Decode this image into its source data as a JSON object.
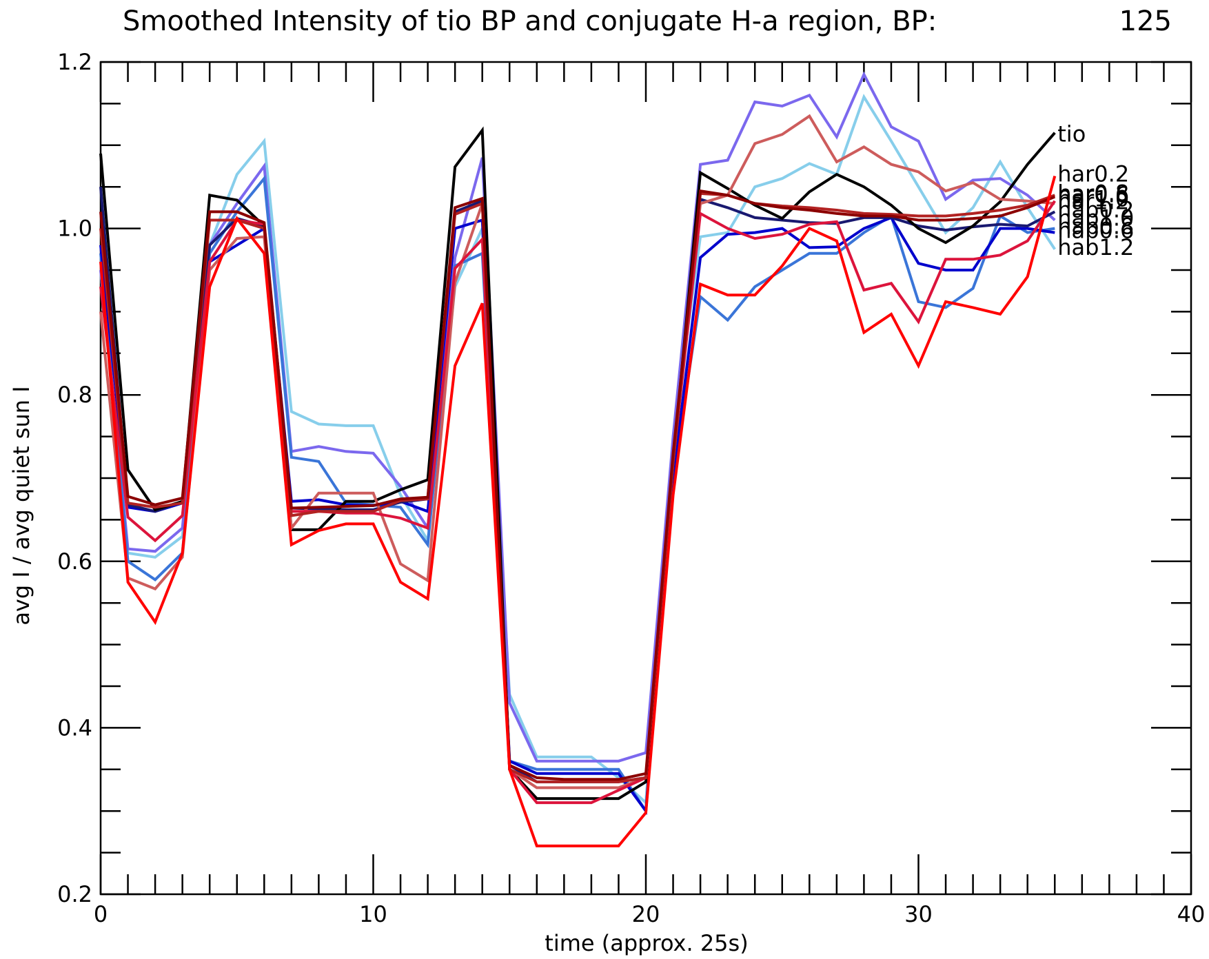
{
  "chart_data": {
    "type": "line",
    "title": "Smoothed Intensity of tio BP and conjugate H-a region, BP:",
    "title_value": "125",
    "xlabel": "time (approx. 25s)",
    "ylabel": "avg I / avg quiet sun I",
    "xlim": [
      0,
      40
    ],
    "ylim": [
      0.2,
      1.2
    ],
    "x_ticks": [
      0,
      10,
      20,
      30,
      40
    ],
    "y_ticks": [
      0.2,
      0.4,
      0.6,
      0.8,
      1.0,
      1.2
    ],
    "x_tick_labels": [
      "0",
      "10",
      "20",
      "30",
      "40"
    ],
    "y_tick_labels": [
      "0.2",
      "0.4",
      "0.6",
      "0.8",
      "1.0",
      "1.2"
    ],
    "grid": false,
    "x": [
      0,
      1,
      2,
      3,
      4,
      5,
      6,
      7,
      8,
      9,
      10,
      11,
      12,
      13,
      14,
      15,
      16,
      17,
      18,
      19,
      20,
      21,
      22,
      23,
      24,
      25,
      26,
      27,
      28,
      29,
      30,
      31,
      32,
      33,
      34,
      35
    ],
    "series": [
      {
        "key": "hab1.2",
        "color": "#87ceeb",
        "values": [
          0.95,
          0.61,
          0.605,
          0.63,
          0.98,
          1.065,
          1.105,
          0.78,
          0.765,
          0.763,
          0.763,
          0.68,
          0.625,
          0.93,
          1.0,
          0.44,
          0.365,
          0.365,
          0.365,
          0.34,
          0.31,
          0.75,
          0.99,
          0.995,
          1.05,
          1.06,
          1.078,
          1.065,
          1.158,
          1.105,
          1.05,
          0.995,
          1.025,
          1.08,
          1.025,
          0.975
        ]
      },
      {
        "key": "hab1.0",
        "color": "#7b68ee",
        "values": [
          0.95,
          0.615,
          0.612,
          0.64,
          0.98,
          1.03,
          1.075,
          0.732,
          0.738,
          0.732,
          0.73,
          0.69,
          0.64,
          0.965,
          1.085,
          0.43,
          0.36,
          0.36,
          0.36,
          0.36,
          0.37,
          0.75,
          1.077,
          1.082,
          1.152,
          1.147,
          1.16,
          1.11,
          1.185,
          1.122,
          1.105,
          1.035,
          1.058,
          1.06,
          1.04,
          1.01
        ]
      },
      {
        "key": "hab0.8",
        "color": "#3a75d8",
        "values": [
          0.97,
          0.6,
          0.578,
          0.61,
          0.97,
          1.02,
          1.06,
          0.725,
          0.72,
          0.67,
          0.668,
          0.665,
          0.62,
          0.955,
          0.97,
          0.36,
          0.35,
          0.35,
          0.35,
          0.35,
          0.3,
          0.7,
          0.918,
          0.89,
          0.93,
          0.95,
          0.97,
          0.97,
          0.995,
          1.015,
          0.912,
          0.905,
          0.928,
          1.015,
          0.995,
          1.0
        ]
      },
      {
        "key": "hab0.6",
        "color": "#0000cc",
        "values": [
          0.98,
          0.665,
          0.66,
          0.67,
          0.96,
          0.98,
          1.0,
          0.672,
          0.674,
          0.668,
          0.667,
          0.672,
          0.66,
          1.0,
          1.01,
          0.36,
          0.345,
          0.345,
          0.345,
          0.345,
          0.3,
          0.7,
          0.965,
          0.993,
          0.995,
          1.0,
          0.977,
          0.978,
          1.0,
          1.013,
          0.958,
          0.95,
          0.95,
          1.0,
          1.0,
          0.995
        ]
      },
      {
        "key": "hab0.2",
        "color": "#191970",
        "values": [
          1.05,
          0.668,
          0.66,
          0.672,
          0.98,
          1.012,
          1.003,
          0.664,
          0.663,
          0.662,
          0.662,
          0.671,
          0.675,
          1.02,
          1.033,
          0.355,
          0.335,
          0.335,
          0.335,
          0.335,
          0.34,
          0.72,
          1.035,
          1.025,
          1.013,
          1.01,
          1.007,
          1.006,
          1.013,
          1.013,
          1.003,
          0.998,
          1.002,
          1.005,
          1.003,
          1.02
        ]
      },
      {
        "key": "tio",
        "color": "#000000",
        "values": [
          1.09,
          0.71,
          0.662,
          0.672,
          1.04,
          1.034,
          1.003,
          0.638,
          0.638,
          0.672,
          0.672,
          0.686,
          0.698,
          1.074,
          1.118,
          0.35,
          0.315,
          0.315,
          0.315,
          0.315,
          0.335,
          0.72,
          1.067,
          1.048,
          1.028,
          1.012,
          1.044,
          1.065,
          1.05,
          1.028,
          1.0,
          0.983,
          1.003,
          1.032,
          1.077,
          1.115
        ]
      },
      {
        "key": "har1.2",
        "color": "#cd5c5c",
        "values": [
          0.9,
          0.58,
          0.567,
          0.605,
          0.95,
          0.988,
          0.99,
          0.64,
          0.682,
          0.682,
          0.682,
          0.597,
          0.577,
          0.935,
          1.03,
          0.35,
          0.328,
          0.328,
          0.328,
          0.328,
          0.34,
          0.72,
          1.03,
          1.04,
          1.102,
          1.113,
          1.135,
          1.08,
          1.098,
          1.077,
          1.068,
          1.045,
          1.055,
          1.035,
          1.033,
          1.03
        ]
      },
      {
        "key": "har1.0",
        "color": "#dc143c",
        "values": [
          0.93,
          0.653,
          0.625,
          0.655,
          0.96,
          1.01,
          1.005,
          0.66,
          0.66,
          0.658,
          0.658,
          0.652,
          0.64,
          0.952,
          0.987,
          0.35,
          0.31,
          0.31,
          0.31,
          0.325,
          0.34,
          0.72,
          1.018,
          1.0,
          0.988,
          0.993,
          1.005,
          1.008,
          0.926,
          0.934,
          0.888,
          0.963,
          0.963,
          0.968,
          0.985,
          1.033
        ]
      },
      {
        "key": "har0.8",
        "color": "#b22222",
        "values": [
          1.0,
          0.67,
          0.665,
          0.67,
          1.01,
          1.01,
          1.0,
          0.655,
          0.66,
          0.66,
          0.66,
          0.673,
          0.675,
          1.017,
          1.03,
          0.35,
          0.335,
          0.335,
          0.335,
          0.335,
          0.34,
          0.72,
          1.042,
          1.04,
          1.03,
          1.027,
          1.025,
          1.022,
          1.018,
          1.017,
          1.015,
          1.015,
          1.018,
          1.022,
          1.028,
          1.04
        ]
      },
      {
        "key": "har0.6",
        "color": "#8b0000",
        "values": [
          1.02,
          0.678,
          0.668,
          0.676,
          1.02,
          1.02,
          1.007,
          0.664,
          0.665,
          0.666,
          0.667,
          0.675,
          0.677,
          1.025,
          1.036,
          0.355,
          0.34,
          0.338,
          0.338,
          0.338,
          0.345,
          0.73,
          1.045,
          1.04,
          1.03,
          1.025,
          1.022,
          1.018,
          1.015,
          1.015,
          1.01,
          1.01,
          1.012,
          1.015,
          1.025,
          1.038
        ]
      },
      {
        "key": "har0.2",
        "color": "#ff0000",
        "values": [
          0.96,
          0.575,
          0.527,
          0.61,
          0.93,
          1.012,
          0.97,
          0.62,
          0.637,
          0.645,
          0.645,
          0.575,
          0.555,
          0.835,
          0.91,
          0.35,
          0.258,
          0.258,
          0.258,
          0.258,
          0.298,
          0.68,
          0.933,
          0.92,
          0.92,
          0.955,
          1.0,
          0.985,
          0.875,
          0.897,
          0.835,
          0.912,
          0.905,
          0.897,
          0.942,
          1.063
        ]
      }
    ],
    "end_labels": [
      {
        "text": "tio",
        "series": "tio"
      },
      {
        "text": "har0.6",
        "series": "har0.6"
      },
      {
        "text": "har0.8",
        "series": "har0.8"
      },
      {
        "text": "har1.0",
        "series": "har1.0"
      },
      {
        "text": "har1.2",
        "series": "har1.2"
      },
      {
        "text": "hab0.2",
        "series": "hab0.2"
      },
      {
        "text": "hab1.2",
        "series": "hab1.2"
      },
      {
        "text": "hab1.0",
        "series": "hab1.0"
      },
      {
        "text": "hab0.6",
        "series": "hab0.6"
      },
      {
        "text": "hab0.8",
        "series": "hab0.8"
      },
      {
        "text": "har0.2",
        "series": "har0.2"
      }
    ]
  }
}
